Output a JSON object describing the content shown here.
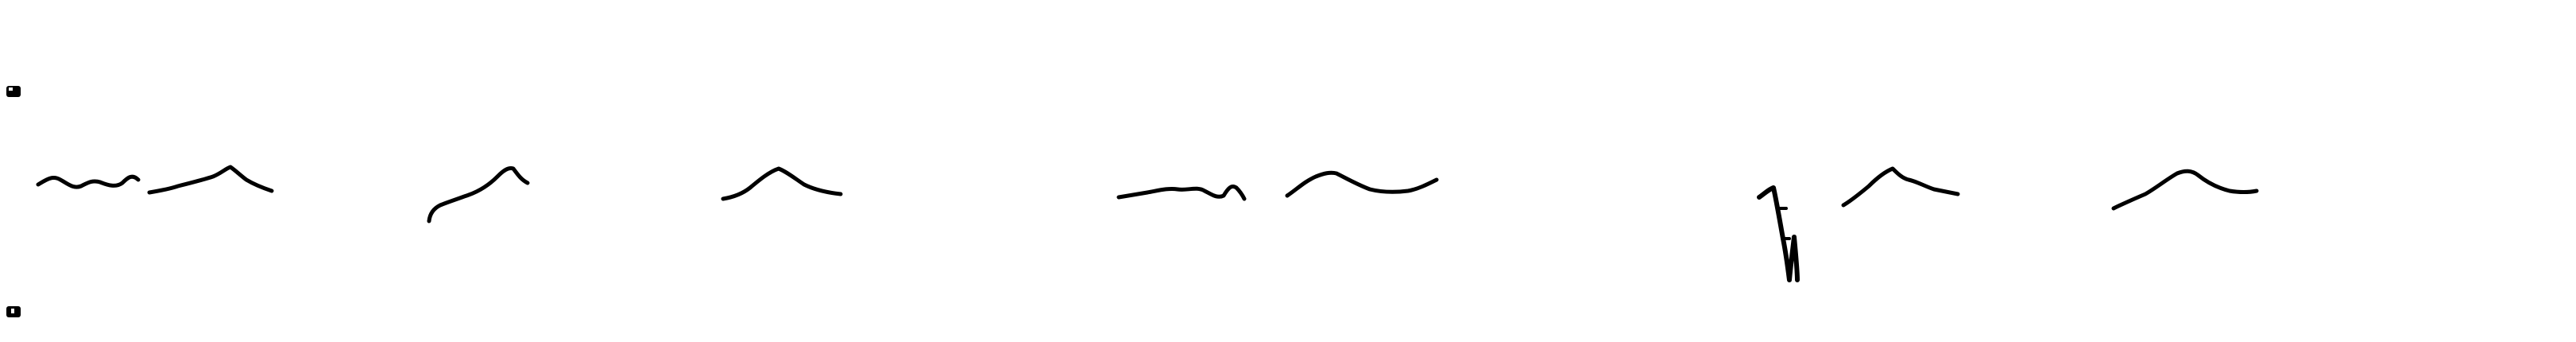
{
  "strip": {
    "lead_top": "V1",
    "lead_bottom": "V4",
    "trace_color": "#000000",
    "background_color": "#ffffff"
  }
}
